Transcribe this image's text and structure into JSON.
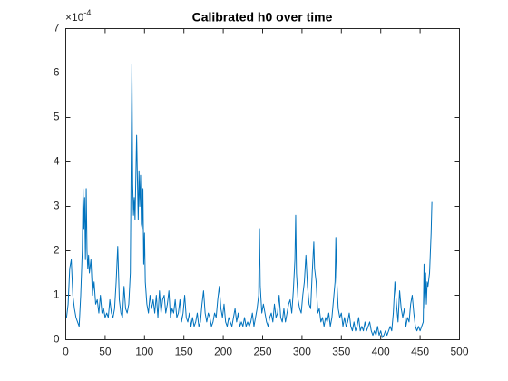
{
  "chart_data": {
    "type": "line",
    "title": "Calibrated h0 over time",
    "y_multiplier_base": "×10",
    "y_multiplier_exponent": "-4",
    "xlim": [
      0,
      500
    ],
    "xticks": [
      0,
      50,
      100,
      150,
      200,
      250,
      300,
      350,
      400,
      450,
      500
    ],
    "ylim": [
      0,
      7
    ],
    "yticks": [
      0,
      1,
      2,
      3,
      4,
      5,
      6,
      7
    ],
    "grid": false,
    "series": [
      {
        "name": "h0",
        "color": "#0072BD",
        "x": [
          1,
          3,
          5,
          7,
          9,
          11,
          13,
          15,
          17,
          19,
          21,
          22,
          23,
          24,
          25,
          26,
          27,
          28,
          29,
          30,
          32,
          34,
          36,
          38,
          40,
          42,
          44,
          46,
          48,
          50,
          52,
          54,
          56,
          58,
          60,
          62,
          64,
          66,
          68,
          70,
          72,
          74,
          76,
          78,
          80,
          82,
          84,
          85,
          86,
          87,
          88,
          90,
          91,
          92,
          93,
          94,
          95,
          96,
          97,
          98,
          99,
          100,
          101,
          103,
          105,
          107,
          109,
          111,
          113,
          115,
          117,
          119,
          121,
          123,
          125,
          127,
          129,
          131,
          133,
          135,
          137,
          139,
          141,
          143,
          145,
          147,
          149,
          151,
          153,
          155,
          157,
          159,
          161,
          163,
          165,
          167,
          169,
          171,
          173,
          175,
          177,
          179,
          181,
          183,
          185,
          187,
          189,
          191,
          193,
          195,
          197,
          199,
          201,
          203,
          205,
          207,
          209,
          211,
          213,
          215,
          217,
          219,
          221,
          223,
          225,
          227,
          229,
          231,
          233,
          235,
          237,
          239,
          241,
          243,
          245,
          246,
          247,
          249,
          251,
          253,
          255,
          257,
          259,
          261,
          263,
          265,
          267,
          269,
          271,
          273,
          275,
          277,
          279,
          281,
          283,
          285,
          287,
          289,
          291,
          292,
          293,
          295,
          297,
          299,
          301,
          303,
          305,
          307,
          309,
          311,
          313,
          315,
          316,
          318,
          320,
          322,
          324,
          326,
          328,
          330,
          332,
          334,
          336,
          338,
          340,
          342,
          343,
          344,
          346,
          348,
          350,
          352,
          354,
          356,
          358,
          360,
          362,
          364,
          366,
          368,
          370,
          372,
          374,
          376,
          378,
          380,
          382,
          384,
          386,
          388,
          390,
          392,
          394,
          396,
          398,
          400,
          402,
          404,
          406,
          408,
          410,
          412,
          414,
          416,
          418,
          420,
          422,
          424,
          426,
          428,
          430,
          432,
          434,
          436,
          438,
          440,
          442,
          444,
          446,
          448,
          450,
          452,
          454,
          455,
          456,
          457,
          458,
          459,
          460,
          462,
          464,
          465
        ],
        "values": [
          0.5,
          0.8,
          1.6,
          1.8,
          1.0,
          0.7,
          0.5,
          0.4,
          0.3,
          1.0,
          2.0,
          3.4,
          2.5,
          3.2,
          1.8,
          3.4,
          2.0,
          1.6,
          1.9,
          1.5,
          1.8,
          1.0,
          1.3,
          0.8,
          0.9,
          0.6,
          1.0,
          0.6,
          0.7,
          0.5,
          0.6,
          0.5,
          0.9,
          0.6,
          0.5,
          0.7,
          1.3,
          2.1,
          0.9,
          0.6,
          0.5,
          1.2,
          0.7,
          0.6,
          0.8,
          1.5,
          6.2,
          3.5,
          2.8,
          3.2,
          2.7,
          4.6,
          3.6,
          2.7,
          3.8,
          3.0,
          3.7,
          2.6,
          2.5,
          3.4,
          1.7,
          2.4,
          1.3,
          0.8,
          0.6,
          1.0,
          0.7,
          0.9,
          0.6,
          1.0,
          0.5,
          1.1,
          0.6,
          0.9,
          1.0,
          0.6,
          0.8,
          1.1,
          0.5,
          0.7,
          0.6,
          0.9,
          0.5,
          0.6,
          0.9,
          0.4,
          0.6,
          1.0,
          0.5,
          0.4,
          0.6,
          0.3,
          0.5,
          0.3,
          0.4,
          0.6,
          0.3,
          0.4,
          0.8,
          1.1,
          0.6,
          0.4,
          0.6,
          0.5,
          0.3,
          0.4,
          0.6,
          0.5,
          0.9,
          1.2,
          0.7,
          0.5,
          0.8,
          0.4,
          0.3,
          0.5,
          0.4,
          0.3,
          0.5,
          0.7,
          0.4,
          0.6,
          0.3,
          0.4,
          0.3,
          0.5,
          0.3,
          0.4,
          0.3,
          0.4,
          0.6,
          0.3,
          0.5,
          0.7,
          1.0,
          2.5,
          1.2,
          0.6,
          0.8,
          0.6,
          0.4,
          0.3,
          0.5,
          0.6,
          0.4,
          0.8,
          0.5,
          0.6,
          1.0,
          0.5,
          0.4,
          0.7,
          0.4,
          0.6,
          0.8,
          0.9,
          0.6,
          1.1,
          1.8,
          2.8,
          1.5,
          0.9,
          0.7,
          0.6,
          1.0,
          1.3,
          1.9,
          1.2,
          0.8,
          0.7,
          1.5,
          2.2,
          1.6,
          1.3,
          0.6,
          0.7,
          0.4,
          0.5,
          0.3,
          0.5,
          0.4,
          0.6,
          0.3,
          0.5,
          0.9,
          1.3,
          2.3,
          1.4,
          0.7,
          0.5,
          0.6,
          0.3,
          0.5,
          0.3,
          0.4,
          0.6,
          0.3,
          0.2,
          0.4,
          0.2,
          0.3,
          0.5,
          0.2,
          0.3,
          0.2,
          0.4,
          0.2,
          0.3,
          0.4,
          0.2,
          0.1,
          0.2,
          0.1,
          0.3,
          0.1,
          0.2,
          0.05,
          0.1,
          0.2,
          0.1,
          0.2,
          0.3,
          0.2,
          0.6,
          1.3,
          0.8,
          0.4,
          1.1,
          0.7,
          0.5,
          0.7,
          0.3,
          0.5,
          0.4,
          0.8,
          1.0,
          0.6,
          0.3,
          0.2,
          0.3,
          0.2,
          0.3,
          0.4,
          1.7,
          0.7,
          1.5,
          0.8,
          1.3,
          1.2,
          1.5,
          2.4,
          3.1
        ]
      }
    ]
  }
}
